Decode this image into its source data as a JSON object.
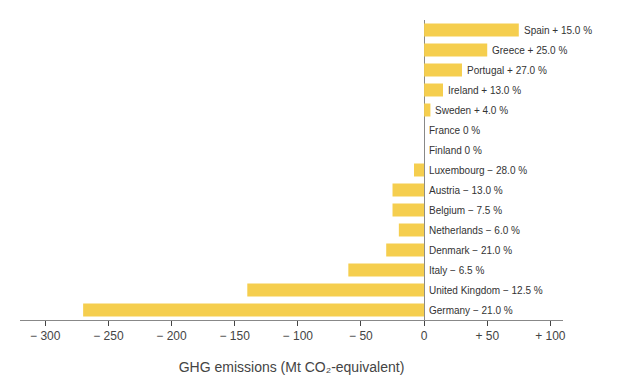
{
  "chart_data": {
    "type": "bar",
    "orientation": "horizontal",
    "categories": [
      "Spain + 15.0 %",
      "Greece + 25.0 %",
      "Portugal + 27.0 %",
      "Ireland + 13.0 %",
      "Sweden + 4.0 %",
      "France 0 %",
      "Finland 0 %",
      "Luxembourg − 28.0 %",
      "Austria − 13.0 %",
      "Belgium − 7.5 %",
      "Netherlands − 6.0 %",
      "Denmark − 21.0 %",
      "Italy − 6.5 %",
      "United Kingdom − 12.5 %",
      "Germany − 21.0 %"
    ],
    "values": [
      75,
      50,
      30,
      15,
      5,
      0,
      0,
      -8,
      -25,
      -25,
      -20,
      -30,
      -60,
      -140,
      -270
    ],
    "color": "#F5CE4E",
    "xlabel": "GHG emissions (Mt CO₂-equivalent)",
    "xlim": [
      -320,
      110
    ],
    "xticks": [
      {
        "value": -300,
        "label": "− 300"
      },
      {
        "value": -250,
        "label": "− 250"
      },
      {
        "value": -200,
        "label": "− 200"
      },
      {
        "value": -150,
        "label": "− 150"
      },
      {
        "value": -100,
        "label": "− 100"
      },
      {
        "value": -50,
        "label": "− 50"
      },
      0,
      {
        "value": 50,
        "label": "+ 50"
      },
      {
        "value": 100,
        "label": "+ 100"
      }
    ],
    "grid": false,
    "tick_labels": "x"
  }
}
